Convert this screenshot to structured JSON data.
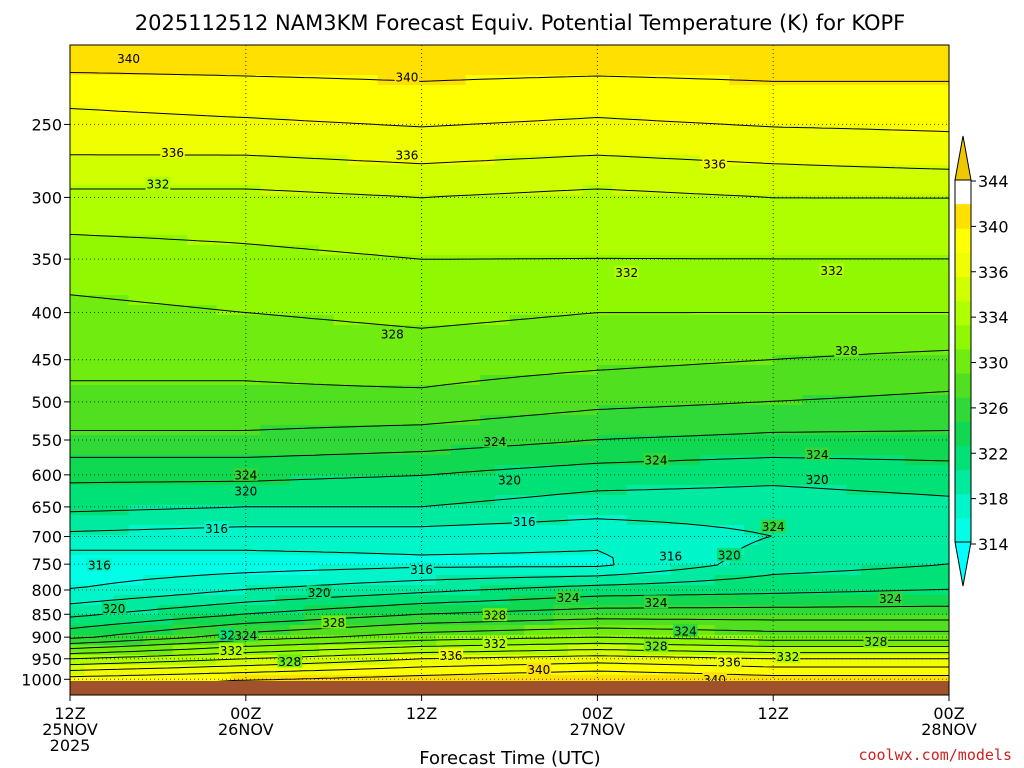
{
  "chart_data": {
    "type": "heatmap",
    "title": "2025112512 NAM3KM Forecast Equiv. Potential Temperature (K) for KOPF",
    "xlabel": "Forecast Time (UTC)",
    "ylabel": "",
    "y_scale": "log-pressure",
    "ylim": [
      1040,
      205
    ],
    "xlim": [
      0,
      60
    ],
    "y_ticks": [
      250,
      300,
      350,
      400,
      450,
      500,
      550,
      600,
      650,
      700,
      750,
      800,
      850,
      900,
      950,
      1000
    ],
    "y_tick_labels": [
      "250",
      "300",
      "350",
      "400",
      "450",
      "500",
      "550",
      "600",
      "650",
      "700",
      "750",
      "800",
      "850",
      "900",
      "950",
      "1000"
    ],
    "x_ticks": [
      {
        "hour": 0,
        "l1": "12Z",
        "l2": "25NOV",
        "l3": "2025"
      },
      {
        "hour": 12,
        "l1": "00Z",
        "l2": "26NOV",
        "l3": ""
      },
      {
        "hour": 24,
        "l1": "12Z",
        "l2": "",
        "l3": ""
      },
      {
        "hour": 36,
        "l1": "00Z",
        "l2": "27NOV",
        "l3": ""
      },
      {
        "hour": 48,
        "l1": "12Z",
        "l2": "",
        "l3": ""
      },
      {
        "hour": 60,
        "l1": "00Z",
        "l2": "28NOV",
        "l3": ""
      }
    ],
    "grid": true,
    "colorbar": {
      "levels": [
        314,
        316,
        318,
        320,
        322,
        324,
        326,
        328,
        330,
        332,
        334,
        336,
        338,
        340,
        342,
        344
      ],
      "labels": [
        "314",
        "318",
        "322",
        "326",
        "330",
        "334",
        "336",
        "340",
        "344"
      ],
      "label_values": [
        314,
        318,
        322,
        326,
        330,
        334,
        336,
        340,
        344
      ],
      "colors": [
        "#00ffe6",
        "#00f5c8",
        "#00eba0",
        "#00e178",
        "#10d850",
        "#30d838",
        "#50e020",
        "#70ec10",
        "#90f800",
        "#b0ff00",
        "#d0ff00",
        "#f0ff00",
        "#ffff00",
        "#ffe000"
      ]
    },
    "profiles": [
      {
        "p": 210,
        "theta": [
          341,
          341,
          341,
          341,
          341,
          341
        ]
      },
      {
        "p": 240,
        "theta": [
          338,
          338.5,
          339,
          338.5,
          339,
          339
        ]
      },
      {
        "p": 270,
        "theta": [
          336,
          336,
          336.5,
          336,
          336.5,
          337
        ]
      },
      {
        "p": 300,
        "theta": [
          333.5,
          333.5,
          334,
          333.5,
          334,
          334
        ]
      },
      {
        "p": 350,
        "theta": [
          331,
          331.5,
          332,
          332,
          332,
          332
        ]
      },
      {
        "p": 400,
        "theta": [
          329.5,
          330,
          330.5,
          330,
          330,
          330
        ]
      },
      {
        "p": 450,
        "theta": [
          328.5,
          328.5,
          329,
          328.5,
          328,
          327.5
        ]
      },
      {
        "p": 500,
        "theta": [
          327.5,
          327.5,
          327.5,
          326.5,
          326,
          325.5
        ]
      },
      {
        "p": 550,
        "theta": [
          325.5,
          325.5,
          325,
          324,
          323.5,
          323.5
        ]
      },
      {
        "p": 600,
        "theta": [
          322.5,
          322.5,
          322,
          321,
          320.5,
          321
        ]
      },
      {
        "p": 650,
        "theta": [
          320.5,
          320,
          320,
          319,
          319,
          319.5
        ]
      },
      {
        "p": 700,
        "theta": [
          317.5,
          317,
          317,
          316.5,
          318,
          318.5
        ]
      },
      {
        "p": 750,
        "theta": [
          314.5,
          315,
          315.5,
          315.5,
          319,
          320
        ]
      },
      {
        "p": 800,
        "theta": [
          316,
          318,
          319.5,
          321,
          321.5,
          322
        ]
      },
      {
        "p": 850,
        "theta": [
          319.5,
          322,
          324,
          325,
          325,
          325
        ]
      },
      {
        "p": 900,
        "theta": [
          323.5,
          327,
          329,
          330,
          329,
          329
        ]
      },
      {
        "p": 950,
        "theta": [
          332,
          334,
          336,
          337,
          336,
          336
        ]
      },
      {
        "p": 1000,
        "theta": [
          339,
          340,
          341,
          342,
          341,
          341
        ]
      },
      {
        "p": 1040,
        "theta": [
          341,
          341,
          342,
          342,
          342,
          342
        ]
      }
    ],
    "contour_labels": [
      {
        "t": 340,
        "hour": 4,
        "p": 212
      },
      {
        "t": 340,
        "hour": 23,
        "p": 222
      },
      {
        "t": 336,
        "hour": 7,
        "p": 268
      },
      {
        "t": 336,
        "hour": 23,
        "p": 270
      },
      {
        "t": 336,
        "hour": 44,
        "p": 276
      },
      {
        "t": 332,
        "hour": 6,
        "p": 290
      },
      {
        "t": 332,
        "hour": 38,
        "p": 362
      },
      {
        "t": 332,
        "hour": 52,
        "p": 360
      },
      {
        "t": 328,
        "hour": 22,
        "p": 422
      },
      {
        "t": 328,
        "hour": 53,
        "p": 440
      },
      {
        "t": 324,
        "hour": 29,
        "p": 552
      },
      {
        "t": 324,
        "hour": 12,
        "p": 600
      },
      {
        "t": 324,
        "hour": 40,
        "p": 578
      },
      {
        "t": 324,
        "hour": 51,
        "p": 570
      },
      {
        "t": 324,
        "hour": 48,
        "p": 683
      },
      {
        "t": 320,
        "hour": 12,
        "p": 625
      },
      {
        "t": 320,
        "hour": 30,
        "p": 608
      },
      {
        "t": 320,
        "hour": 51,
        "p": 607
      },
      {
        "t": 316,
        "hour": 10,
        "p": 686
      },
      {
        "t": 316,
        "hour": 31,
        "p": 674
      },
      {
        "t": 316,
        "hour": 2,
        "p": 752
      },
      {
        "t": 316,
        "hour": 24,
        "p": 760
      },
      {
        "t": 316,
        "hour": 41,
        "p": 735
      },
      {
        "t": 320,
        "hour": 45,
        "p": 733
      },
      {
        "t": 320,
        "hour": 3,
        "p": 838
      },
      {
        "t": 320,
        "hour": 17,
        "p": 805
      },
      {
        "t": 320,
        "hour": 11,
        "p": 895
      },
      {
        "t": 324,
        "hour": 12,
        "p": 896
      },
      {
        "t": 324,
        "hour": 34,
        "p": 815
      },
      {
        "t": 324,
        "hour": 40,
        "p": 825
      },
      {
        "t": 324,
        "hour": 42,
        "p": 886
      },
      {
        "t": 324,
        "hour": 56,
        "p": 817
      },
      {
        "t": 328,
        "hour": 18,
        "p": 868
      },
      {
        "t": 328,
        "hour": 29,
        "p": 852
      },
      {
        "t": 328,
        "hour": 40,
        "p": 920
      },
      {
        "t": 328,
        "hour": 55,
        "p": 910
      },
      {
        "t": 328,
        "hour": 15,
        "p": 956
      },
      {
        "t": 332,
        "hour": 11,
        "p": 930
      },
      {
        "t": 332,
        "hour": 29,
        "p": 914
      },
      {
        "t": 332,
        "hour": 49,
        "p": 945
      },
      {
        "t": 336,
        "hour": 26,
        "p": 942
      },
      {
        "t": 336,
        "hour": 45,
        "p": 958
      },
      {
        "t": 340,
        "hour": 32,
        "p": 976
      },
      {
        "t": 340,
        "hour": 44,
        "p": 1000
      }
    ]
  },
  "credit": "coolwx.com/models"
}
